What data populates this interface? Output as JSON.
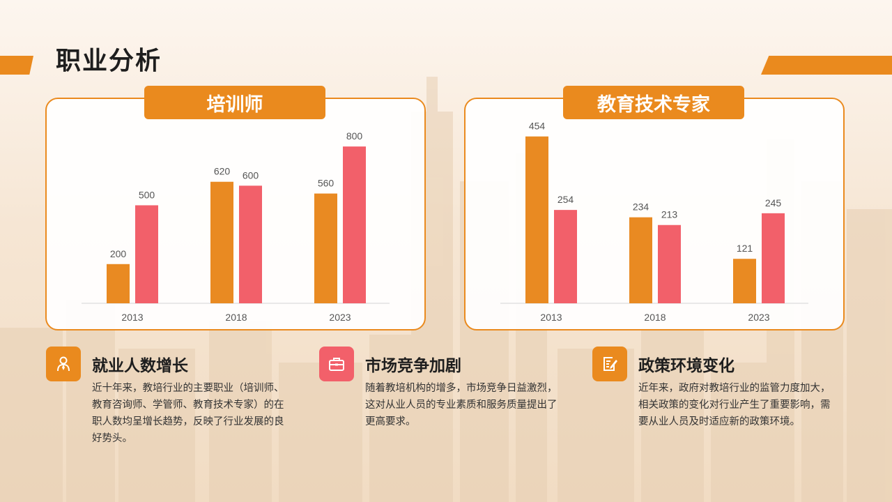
{
  "page": {
    "title": "职业分析"
  },
  "colors": {
    "accent": "#ea8a1e",
    "series_a": "#e98a22",
    "series_b": "#f2606a",
    "text": "#1e1e1e"
  },
  "chart_data": [
    {
      "type": "bar",
      "title": "培训师",
      "categories": [
        "2013",
        "2018",
        "2023"
      ],
      "series": [
        {
          "values": [
            200,
            620,
            560
          ]
        },
        {
          "values": [
            500,
            600,
            800
          ]
        }
      ],
      "ylim": [
        0,
        900
      ],
      "grid": false,
      "legend": "none"
    },
    {
      "type": "bar",
      "title": "教育技术专家",
      "categories": [
        "2013",
        "2018",
        "2023"
      ],
      "series": [
        {
          "values": [
            454,
            234,
            121
          ]
        },
        {
          "values": [
            254,
            213,
            245
          ]
        }
      ],
      "ylim": [
        0,
        480
      ],
      "grid": false,
      "legend": "none"
    }
  ],
  "info": [
    {
      "icon": "person-icon",
      "color": "#ea8a1e",
      "title": "就业人数增长",
      "text": "近十年来，教培行业的主要职业（培训师、教育咨询师、学管师、教育技术专家）的在职人数均呈增长趋势，反映了行业发展的良好势头。"
    },
    {
      "icon": "briefcase-icon",
      "color": "#f2606a",
      "title": "市场竞争加剧",
      "text": "随着教培机构的增多，市场竞争日益激烈，这对从业人员的专业素质和服务质量提出了更高要求。"
    },
    {
      "icon": "document-edit-icon",
      "color": "#ea8a1e",
      "title": "政策环境变化",
      "text": "近年来，政府对教培行业的监管力度加大，相关政策的变化对行业产生了重要影响，需要从业人员及时适应新的政策环境。"
    }
  ]
}
